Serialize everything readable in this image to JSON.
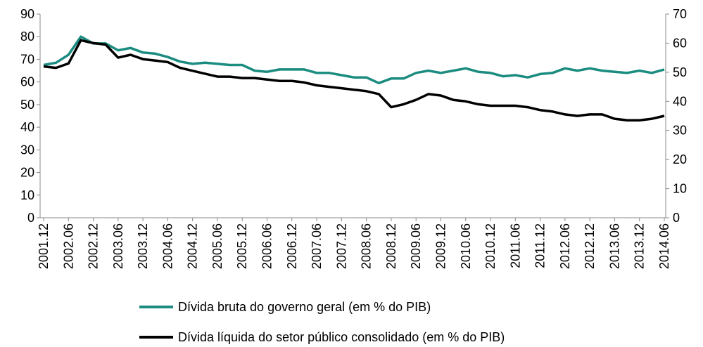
{
  "chart_data": {
    "type": "line",
    "categories": [
      "2001.12",
      null,
      "2002.06",
      null,
      "2002.12",
      null,
      "2003.06",
      null,
      "2003.12",
      null,
      "2004.06",
      null,
      "2004.12",
      null,
      "2005.06",
      null,
      "2005.12",
      null,
      "2006.06",
      null,
      "2006.12",
      null,
      "2007.06",
      null,
      "2007.12",
      null,
      "2008.06",
      null,
      "2008.12",
      null,
      "2009.06",
      null,
      "2009.12",
      null,
      "2010.06",
      null,
      "2010.12",
      null,
      "2011.06",
      null,
      "2011.12",
      null,
      "2012.06",
      null,
      "2012.12",
      null,
      "2013.06",
      null,
      "2013.12",
      null,
      "2014.06"
    ],
    "series": [
      {
        "name": "Dívida bruta do governo geral (em % do PIB)",
        "color": "#1b8c80",
        "axis": "y",
        "values": [
          67.5,
          68.5,
          72,
          80,
          77,
          77,
          74,
          75,
          73,
          72.5,
          71,
          69,
          68,
          68.5,
          68,
          67.5,
          67.5,
          65,
          64.5,
          65.5,
          65.5,
          65.5,
          64,
          64,
          63,
          62,
          62,
          59.5,
          61.5,
          61.5,
          64,
          65,
          64,
          65,
          66,
          64.5,
          64,
          62.5,
          63,
          62,
          63.5,
          64,
          66,
          65,
          66,
          65,
          64.5,
          64,
          65,
          64,
          65.5
        ]
      },
      {
        "name": "Dívida líquida do setor público consolidado (em % do PIB)",
        "color": "#000000",
        "axis": "y2",
        "values": [
          52,
          51.5,
          53,
          61,
          60,
          59.5,
          55,
          56,
          54.5,
          54,
          53.5,
          51.5,
          50.5,
          49.5,
          48.5,
          48.5,
          48,
          48,
          47.5,
          47,
          47,
          46.5,
          45.5,
          45,
          44.5,
          44,
          43.5,
          42.5,
          38,
          39,
          40.5,
          42.5,
          42,
          40.5,
          40,
          39,
          38.5,
          38.5,
          38.5,
          38,
          37,
          36.5,
          35.5,
          35,
          35.5,
          35.5,
          34,
          33.5,
          33.5,
          34,
          35
        ]
      }
    ],
    "ylim": [
      0,
      90
    ],
    "yticks": [
      0,
      10,
      20,
      30,
      40,
      50,
      60,
      70,
      80,
      90
    ],
    "y2lim": [
      0,
      70
    ],
    "y2ticks": [
      0,
      10,
      20,
      30,
      40,
      50,
      60,
      70
    ],
    "grid": false,
    "legend": "bottom"
  }
}
